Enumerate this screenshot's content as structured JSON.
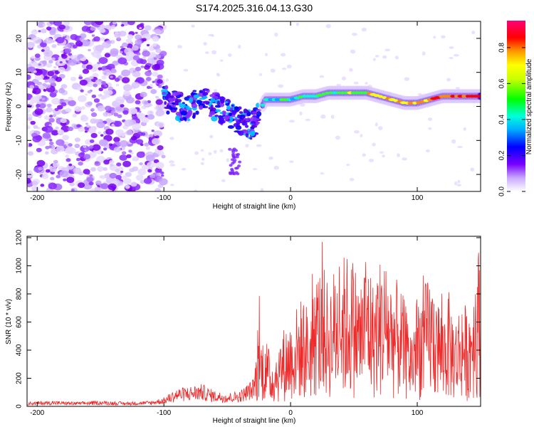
{
  "figure": {
    "title": "S174.2025.316.04.13.G30"
  },
  "chart_data": [
    {
      "type": "heatmap",
      "title": "S174.2025.316.04.13.G30",
      "xlabel": "Height of straight line (km)",
      "ylabel": "Frequency (Hz)",
      "xlim": [
        -208,
        150
      ],
      "ylim": [
        -25,
        25
      ],
      "x_ticks": [
        -200,
        -100,
        0,
        100
      ],
      "y_ticks": [
        -20,
        -10,
        0,
        10,
        20
      ],
      "colorbar": {
        "label": "Normalized spectral amplitude",
        "range": [
          0,
          0.95
        ],
        "ticks": [
          0.0,
          0.2,
          0.4,
          0.6,
          0.8
        ]
      },
      "description_points": {
        "noise_region_x": [
          -208,
          -100
        ],
        "signal_track": {
          "x": [
            -100,
            -90,
            -80,
            -70,
            -60,
            -50,
            -40,
            -30,
            -20,
            -10,
            0,
            10,
            20,
            30,
            40,
            50,
            60,
            70,
            80,
            90,
            100,
            110,
            120,
            130,
            140,
            150
          ],
          "y": [
            3,
            0,
            0,
            2,
            0,
            -2,
            -4,
            -6,
            2,
            2,
            2,
            3,
            3,
            4,
            4,
            4,
            4,
            3,
            2,
            1,
            1,
            2,
            3,
            3,
            3,
            3
          ]
        }
      }
    },
    {
      "type": "line",
      "xlabel": "Height of straight line (km)",
      "ylabel": "SNR (10 * v/v)",
      "xlim": [
        -208,
        150
      ],
      "ylim": [
        0,
        1210
      ],
      "x_ticks": [
        -200,
        -100,
        0,
        100
      ],
      "y_ticks": [
        0,
        200,
        400,
        600,
        800,
        1000,
        1200
      ],
      "series": [
        {
          "name": "SNR",
          "color": "#ee2b2b",
          "x": [
            -208,
            -190,
            -170,
            -150,
            -130,
            -110,
            -100,
            -90,
            -80,
            -70,
            -60,
            -50,
            -40,
            -30,
            -25,
            -20,
            -15,
            -10,
            -5,
            0,
            5,
            10,
            15,
            20,
            25,
            30,
            35,
            40,
            45,
            50,
            55,
            60,
            65,
            70,
            75,
            80,
            85,
            90,
            95,
            100,
            105,
            110,
            115,
            120,
            125,
            130,
            135,
            140,
            145,
            150
          ],
          "values": [
            20,
            25,
            20,
            25,
            20,
            25,
            40,
            80,
            90,
            100,
            70,
            60,
            70,
            120,
            250,
            280,
            170,
            240,
            300,
            330,
            380,
            420,
            360,
            500,
            540,
            460,
            530,
            560,
            580,
            560,
            470,
            620,
            470,
            560,
            560,
            490,
            470,
            400,
            300,
            430,
            450,
            500,
            450,
            360,
            430,
            330,
            420,
            360,
            520,
            640
          ]
        }
      ]
    }
  ]
}
